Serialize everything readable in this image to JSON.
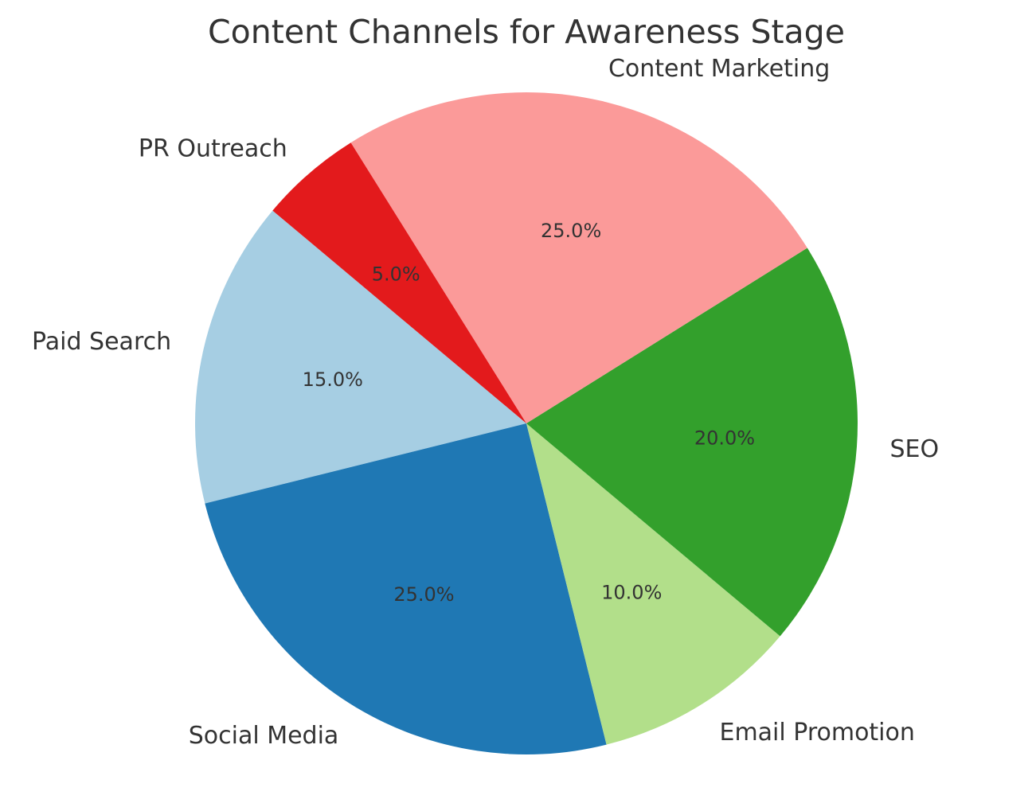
{
  "chart_data": {
    "type": "pie",
    "title": "Content Channels for Awareness Stage",
    "categories": [
      "Paid Search",
      "Social Media",
      "Email Promotion",
      "SEO",
      "Content Marketing",
      "PR Outreach"
    ],
    "values": [
      15,
      25,
      10,
      20,
      25,
      5
    ],
    "percent_labels": [
      "15.0%",
      "25.0%",
      "10.0%",
      "20.0%",
      "25.0%",
      "5.0%"
    ],
    "colors": [
      "#a6cee3",
      "#1f78b4",
      "#b2df8a",
      "#33a02c",
      "#fb9a99",
      "#e31a1c"
    ],
    "start_angle": 140,
    "direction": "counterclockwise",
    "autopct": "%1.1f%%",
    "legend": null
  }
}
